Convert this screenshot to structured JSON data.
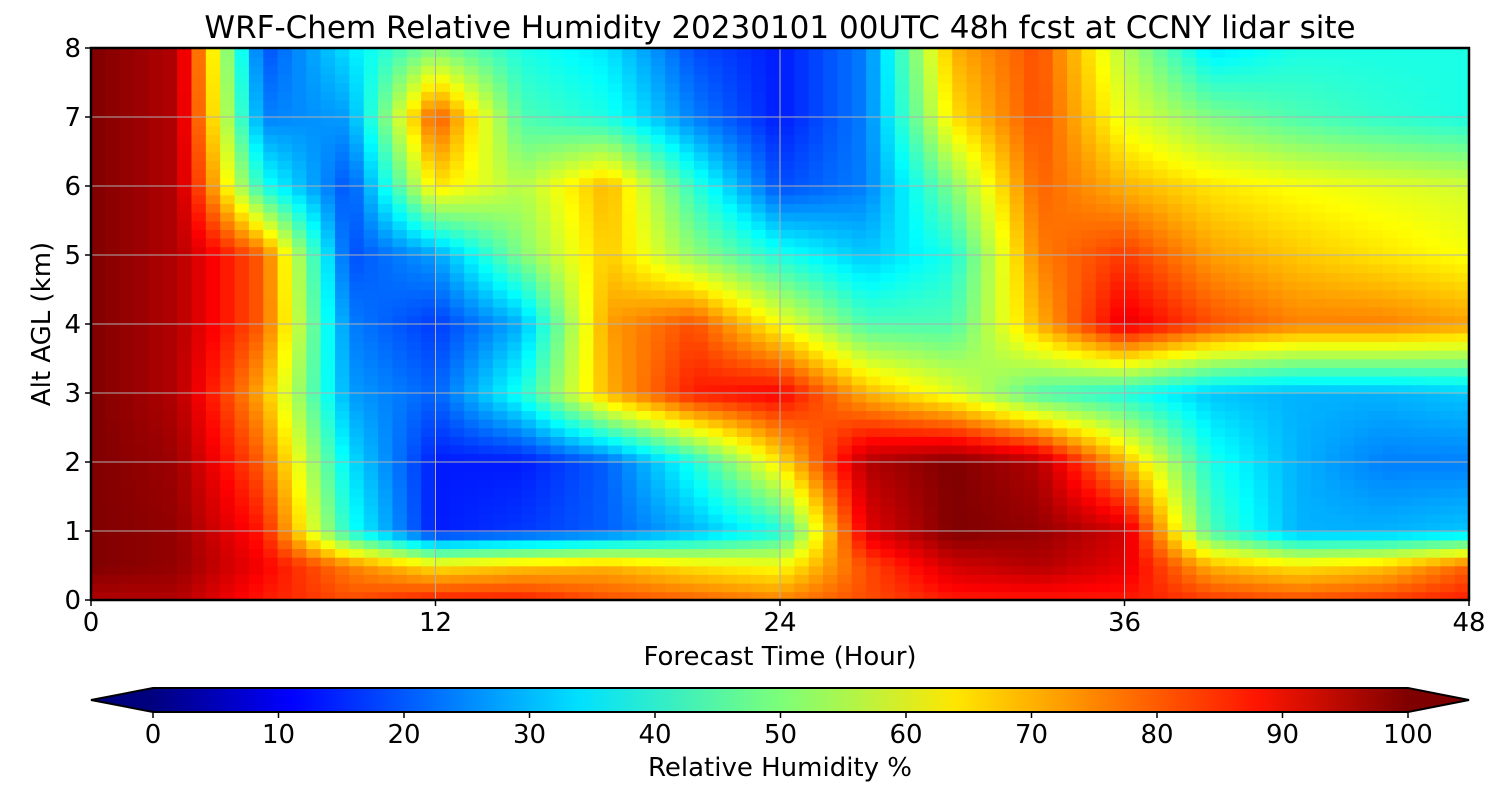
{
  "chart_data": {
    "type": "heatmap",
    "title": "WRF-Chem Relative Humidity 20230101 00UTC 48h fcst at CCNY lidar site",
    "xlabel": "Forecast Time (Hour)",
    "ylabel": "Alt AGL (km)",
    "xlim": [
      0,
      48
    ],
    "ylim": [
      0,
      8
    ],
    "x_ticks": [
      "0",
      "12",
      "24",
      "36",
      "48"
    ],
    "y_ticks": [
      "0",
      "1",
      "2",
      "3",
      "4",
      "5",
      "6",
      "7",
      "8"
    ],
    "grid": true,
    "colormap": "jet",
    "x": [
      0,
      3,
      6,
      9,
      12,
      15,
      18,
      21,
      24,
      27,
      30,
      33,
      36,
      39,
      42,
      45,
      48
    ],
    "y": [
      0,
      0.5,
      1,
      2,
      3,
      4,
      5,
      6,
      7,
      8
    ],
    "z_rows_by_altitude": [
      [
        95,
        95,
        85,
        80,
        85,
        85,
        80,
        78,
        75,
        80,
        85,
        85,
        85,
        82,
        80,
        82,
        85
      ],
      [
        100,
        98,
        88,
        75,
        65,
        68,
        70,
        65,
        62,
        80,
        92,
        95,
        90,
        70,
        65,
        68,
        78
      ],
      [
        100,
        98,
        85,
        40,
        15,
        18,
        22,
        30,
        40,
        90,
        100,
        98,
        92,
        45,
        30,
        30,
        32
      ],
      [
        100,
        97,
        78,
        35,
        15,
        15,
        22,
        40,
        65,
        95,
        100,
        95,
        70,
        40,
        30,
        25,
        25
      ],
      [
        100,
        95,
        70,
        28,
        22,
        40,
        70,
        85,
        88,
        70,
        60,
        45,
        40,
        32,
        30,
        30,
        32
      ],
      [
        100,
        95,
        78,
        25,
        18,
        30,
        72,
        80,
        62,
        45,
        45,
        70,
        90,
        80,
        75,
        75,
        72
      ],
      [
        100,
        95,
        78,
        20,
        28,
        50,
        68,
        52,
        40,
        32,
        40,
        75,
        82,
        72,
        68,
        65,
        62
      ],
      [
        100,
        95,
        40,
        20,
        65,
        55,
        70,
        42,
        20,
        25,
        50,
        78,
        70,
        65,
        62,
        60,
        58
      ],
      [
        100,
        95,
        25,
        28,
        80,
        45,
        40,
        25,
        15,
        25,
        65,
        80,
        60,
        50,
        45,
        42,
        40
      ],
      [
        100,
        95,
        20,
        35,
        50,
        40,
        35,
        20,
        15,
        25,
        70,
        80,
        55,
        35,
        40,
        40,
        40
      ]
    ],
    "colorbar": {
      "label": "Relative Humidity %",
      "range": [
        0,
        100
      ],
      "ticks": [
        "0",
        "10",
        "20",
        "30",
        "40",
        "50",
        "60",
        "70",
        "80",
        "90",
        "100"
      ],
      "extend": "both"
    },
    "colors": {
      "grid": "#b0b0b0",
      "axis": "#000000"
    }
  }
}
